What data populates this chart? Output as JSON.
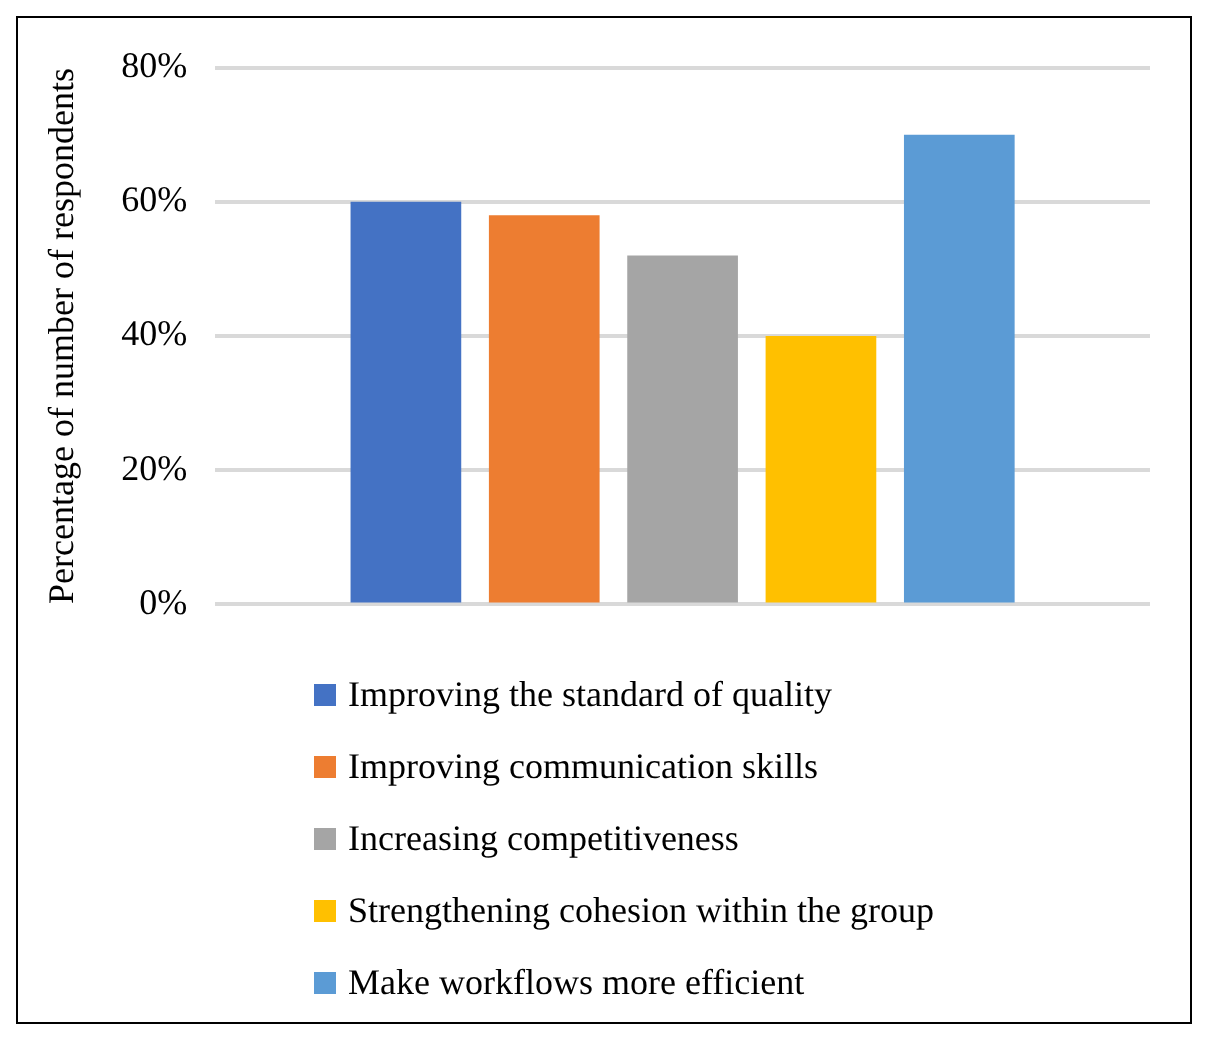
{
  "chart_data": {
    "type": "bar",
    "ylabel": "Percentage of number of respondents",
    "categories": [
      null
    ],
    "series": [
      {
        "name": "Improving the standard of quality",
        "color": "#4472c4",
        "values": [
          60
        ]
      },
      {
        "name": "Improving communication skills",
        "color": "#ed7d31",
        "values": [
          58
        ]
      },
      {
        "name": "Increasing competitiveness",
        "color": "#a5a5a5",
        "values": [
          52
        ]
      },
      {
        "name": "Strengthening cohesion within the group",
        "color": "#ffc000",
        "values": [
          40
        ]
      },
      {
        "name": "Make workflows more efficient",
        "color": "#5b9bd5",
        "values": [
          70
        ]
      }
    ],
    "ylim": [
      0,
      80
    ],
    "yticks": [
      {
        "value": 0,
        "label": "0%"
      },
      {
        "value": 20,
        "label": "20%"
      },
      {
        "value": 40,
        "label": "40%"
      },
      {
        "value": 60,
        "label": "60%"
      },
      {
        "value": 80,
        "label": "80%"
      }
    ],
    "grid": "y",
    "legend": "bottom"
  }
}
